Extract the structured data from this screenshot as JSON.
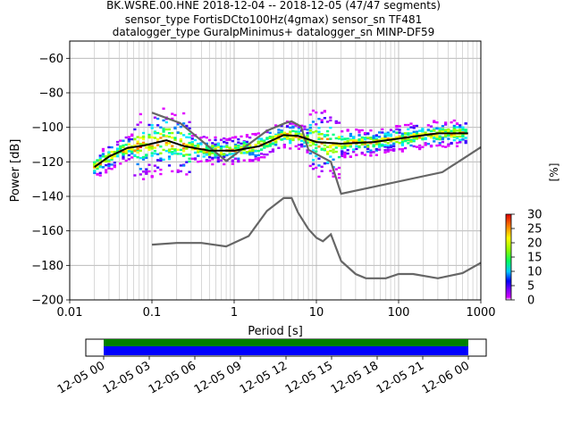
{
  "chart_data": [
    {
      "type": "heatmap",
      "title_lines": [
        "BK.WSRE.00.HNE   2018-12-04 -- 2018-12-05  (47/47 segments)",
        "sensor_type FortisDCto100Hz(4gmax) sensor_sn TF481",
        "datalogger_type GuralpMinimus+ datalogger_sn MINP-DF59"
      ],
      "xlabel": "Period [s]",
      "ylabel": "Power [dB]",
      "x_scale": "log",
      "xlim": [
        0.01,
        1000
      ],
      "ylim": [
        -200,
        -50
      ],
      "x_ticks": [
        0.01,
        0.1,
        1,
        10,
        100,
        1000
      ],
      "x_tick_labels": [
        "0.01",
        "0.1",
        "1",
        "10",
        "100",
        "1000"
      ],
      "y_ticks": [
        -200,
        -180,
        -160,
        -140,
        -120,
        -100,
        -80,
        -60
      ],
      "y_tick_labels": [
        "−200",
        "−180",
        "−160",
        "−140",
        "−120",
        "−100",
        "−80",
        "−60"
      ],
      "grid": true,
      "series": [
        {
          "name": "",
          "color": "#666666",
          "x": [
            0.1,
            0.22,
            0.8,
            2.5,
            4.2,
            5.0,
            6.5,
            8.0,
            15,
            20,
            340,
            1000
          ],
          "y": [
            -91.5,
            -97.5,
            -119.5,
            -102,
            -97.5,
            -96.5,
            -99.5,
            -113,
            -120,
            -138.5,
            -126,
            -111.5
          ]
        },
        {
          "name": "",
          "color": "#666666",
          "x": [
            0.1,
            0.2,
            0.4,
            0.8,
            1.5,
            2.5,
            4.0,
            5.0,
            6.0,
            8.0,
            10,
            12,
            15,
            20,
            30,
            40,
            70,
            100,
            150,
            300,
            600,
            1000
          ],
          "y": [
            -168,
            -167,
            -167,
            -169,
            -163,
            -148.5,
            -141,
            -141,
            -149.5,
            -159,
            -164,
            -166,
            -162,
            -177.5,
            -185,
            -187.5,
            -187.5,
            -185,
            -185,
            -187.5,
            -184.5,
            -178.5
          ]
        },
        {
          "name": "",
          "color": "#000000",
          "x": [
            0.02,
            0.03,
            0.05,
            0.08,
            0.15,
            0.25,
            0.5,
            1.0,
            2.0,
            4.0,
            6.0,
            10,
            20,
            50,
            100,
            300,
            700
          ],
          "y": [
            -123,
            -117,
            -112,
            -110.5,
            -107.5,
            -111,
            -113.5,
            -113.5,
            -111,
            -104.5,
            -105,
            -108.5,
            -109.5,
            -108.5,
            -106.5,
            -103.5,
            -103.5
          ]
        }
      ],
      "colorbar": {
        "label": "[%]",
        "range": [
          0,
          30
        ],
        "ticks": [
          0,
          5,
          10,
          15,
          20,
          25,
          30
        ],
        "tick_labels": [
          "0",
          "5",
          "10",
          "15",
          "20",
          "25",
          "30"
        ]
      }
    },
    {
      "type": "bar",
      "x_tick_labels": [
        "12-05 00",
        "12-05 03",
        "12-05 06",
        "12-05 09",
        "12-05 12",
        "12-05 15",
        "12-05 18",
        "12-05 21",
        "12-06 00"
      ],
      "bars": [
        {
          "color": "#008000"
        },
        {
          "color": "#0000ff"
        }
      ]
    }
  ]
}
